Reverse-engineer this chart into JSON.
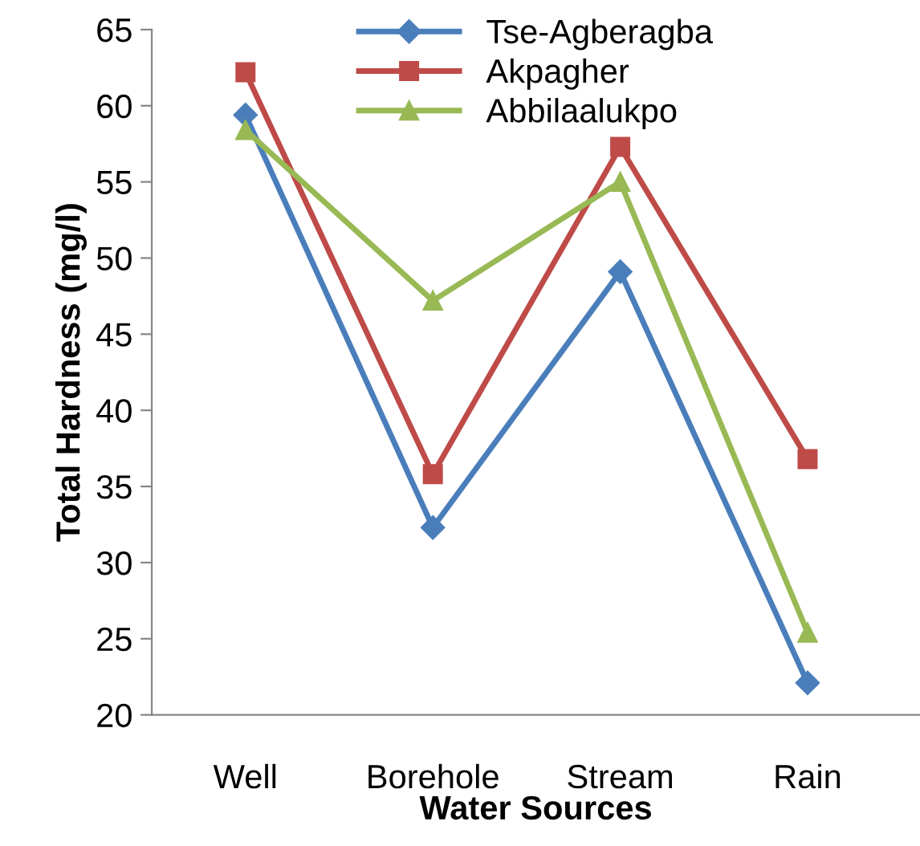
{
  "chart_data": {
    "type": "line",
    "xlabel": "Water Sources",
    "ylabel": "Total Hardness (mg/l)",
    "categories": [
      "Well",
      "Borehole",
      "Stream",
      "Rain"
    ],
    "series": [
      {
        "name": "Tse-Agberagba",
        "color": "#4a7ebb",
        "marker": "diamond",
        "values": [
          59.4,
          32.3,
          49.1,
          22.1
        ]
      },
      {
        "name": "Akpagher",
        "color": "#be4b48",
        "marker": "square",
        "values": [
          62.2,
          35.8,
          57.3,
          36.8
        ]
      },
      {
        "name": "Abbilaalukpo",
        "color": "#98b954",
        "marker": "triangle",
        "values": [
          58.4,
          47.2,
          55.0,
          25.4
        ]
      }
    ],
    "ylim": [
      20,
      65
    ],
    "yticks": [
      20,
      25,
      30,
      35,
      40,
      45,
      50,
      55,
      60,
      65
    ],
    "grid": false,
    "legend": "top"
  }
}
